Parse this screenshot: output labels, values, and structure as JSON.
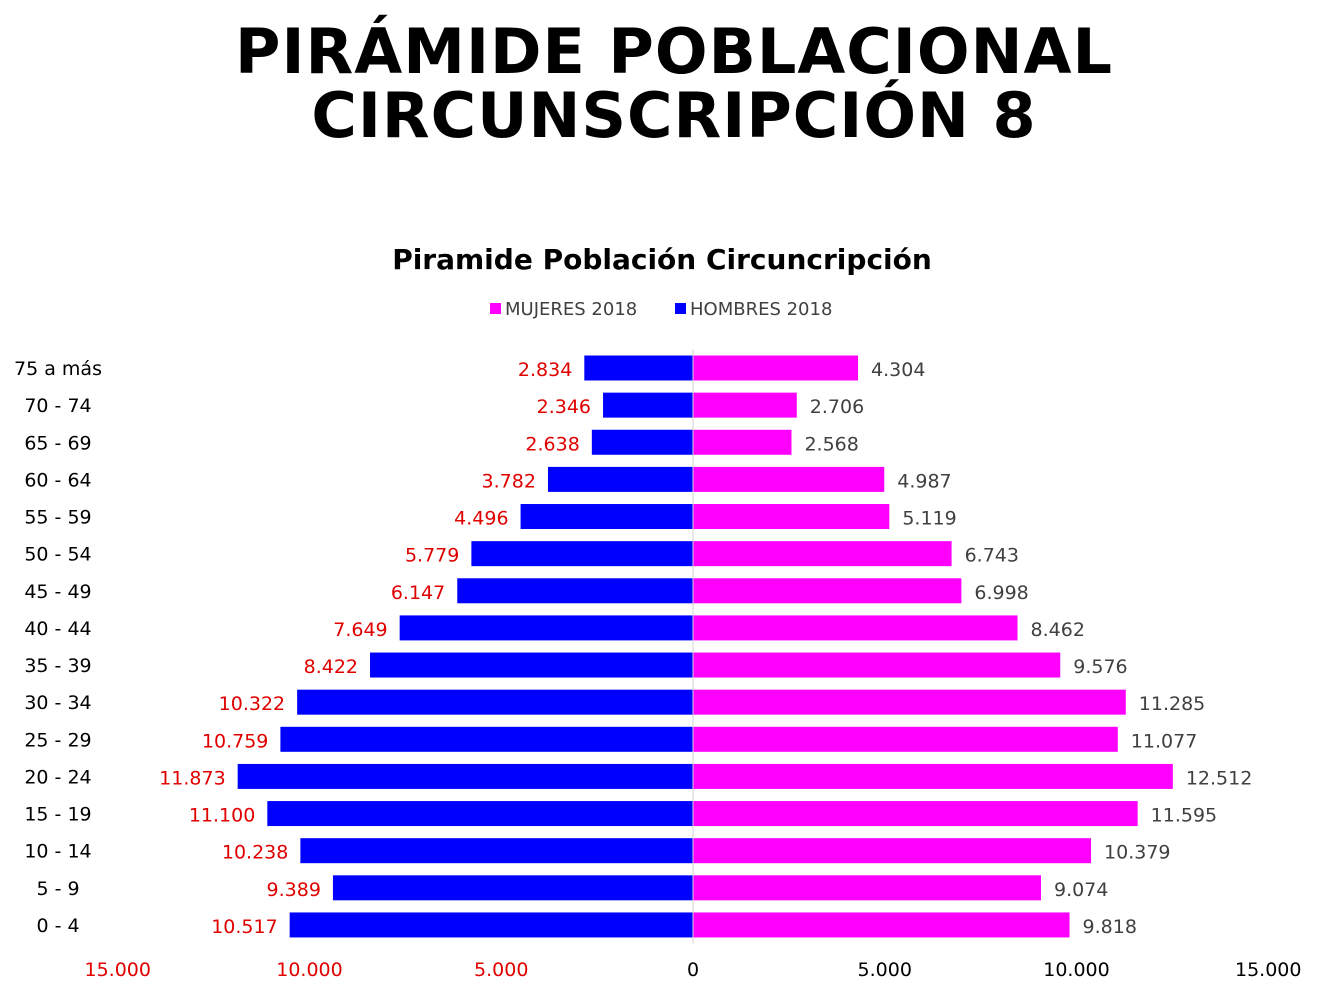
{
  "header": {
    "title_line1": "PIRÁMIDE POBLACIONAL",
    "title_line2": "CIRCUNSCRIPCIÓN 8"
  },
  "colors": {
    "mujeres": "#ff00ff",
    "hombres": "#0000ff",
    "hombres_label": "#e00000",
    "mujeres_label": "#404040",
    "axis_negative_label": "#e00000",
    "axis_positive_label": "#000000"
  },
  "chart_data": {
    "type": "bar",
    "orientation": "horizontal",
    "title": "Piramide Población Circuncripción",
    "legend_position": "top",
    "categories": [
      "75 a más",
      "70 - 74",
      "65 - 69",
      "60 - 64",
      "55 - 59",
      "50 - 54",
      "45 - 49",
      "40 - 44",
      "35 - 39",
      "30 - 34",
      "25 - 29",
      "20 - 24",
      "15 - 19",
      "10 - 14",
      "5 - 9",
      "0 - 4"
    ],
    "series": [
      {
        "name": "MUJERES 2018",
        "values": [
          4304,
          2706,
          2568,
          4987,
          5119,
          6743,
          6998,
          8462,
          9576,
          11285,
          11077,
          12512,
          11595,
          10379,
          9074,
          9818
        ],
        "labels": [
          "4.304",
          "2.706",
          "2.568",
          "4.987",
          "5.119",
          "6.743",
          "6.998",
          "8.462",
          "9.576",
          "11.285",
          "11.077",
          "12.512",
          "11.595",
          "10.379",
          "9.074",
          "9.818"
        ]
      },
      {
        "name": "HOMBRES 2018",
        "values": [
          -2834,
          -2346,
          -2638,
          -3782,
          -4496,
          -5779,
          -6147,
          -7649,
          -8422,
          -10322,
          -10759,
          -11873,
          -11100,
          -10238,
          -9389,
          -10517
        ],
        "labels": [
          "2.834",
          "2.346",
          "2.638",
          "3.782",
          "4.496",
          "5.779",
          "6.147",
          "7.649",
          "8.422",
          "10.322",
          "10.759",
          "11.873",
          "11.100",
          "10.238",
          "9.389",
          "10.517"
        ]
      }
    ],
    "xlim": [
      -15000,
      15000
    ],
    "x_ticks": [
      -15000,
      -10000,
      -5000,
      0,
      5000,
      10000,
      15000
    ],
    "x_tick_labels": [
      "15.000",
      "10.000",
      "5.000",
      "0",
      "5.000",
      "10.000",
      "15.000"
    ],
    "grid": false
  }
}
